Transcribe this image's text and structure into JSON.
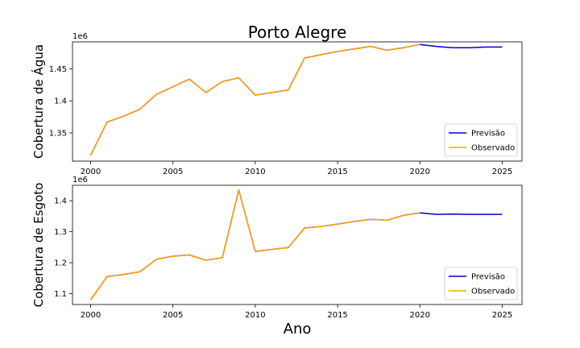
{
  "title": "Porto Alegre",
  "xlabel": "Ano",
  "colors": {
    "previsao": "#0000cc",
    "observado": "#ffa500"
  },
  "chart_data": [
    {
      "type": "line",
      "ylabel": "Cobertura de Água",
      "offset_text": "1e6",
      "xlim": [
        1998.9,
        2026.2
      ],
      "ylim": [
        1306000,
        1492000
      ],
      "xticks": [
        2000,
        2005,
        2010,
        2015,
        2020,
        2025
      ],
      "yticks": [
        1.35,
        1.4,
        1.45
      ],
      "ytick_scale": 1000000,
      "legend": {
        "position": "lower-right",
        "entries": [
          "Previsão",
          "Observado"
        ]
      },
      "series": [
        {
          "name": "Previsão",
          "color": "#0000cc",
          "x": [
            2000,
            2001,
            2002,
            2003,
            2004,
            2005,
            2006,
            2007,
            2008,
            2009,
            2010,
            2011,
            2012,
            2013,
            2014,
            2015,
            2016,
            2017,
            2018,
            2019,
            2020,
            2021,
            2022,
            2023,
            2024,
            2025
          ],
          "values": [
            1315000,
            1367000,
            1376000,
            1387000,
            1410000,
            1422000,
            1434000,
            1413000,
            1430000,
            1436000,
            1409000,
            1413000,
            1417000,
            1467000,
            1472000,
            1477000,
            1481000,
            1485000,
            1479000,
            1483000,
            1488000,
            1485000,
            1483000,
            1483000,
            1484000,
            1484000
          ]
        },
        {
          "name": "Observado",
          "color": "#ffa500",
          "x": [
            2000,
            2001,
            2002,
            2003,
            2004,
            2005,
            2006,
            2007,
            2008,
            2009,
            2010,
            2011,
            2012,
            2013,
            2014,
            2015,
            2016,
            2017,
            2018,
            2019,
            2020
          ],
          "values": [
            1315000,
            1367000,
            1376000,
            1387000,
            1410000,
            1422000,
            1434000,
            1413000,
            1430000,
            1436000,
            1409000,
            1413000,
            1417000,
            1467000,
            1472000,
            1477000,
            1481000,
            1485000,
            1479000,
            1483000,
            1488000
          ]
        }
      ]
    },
    {
      "type": "line",
      "ylabel": "Cobertura de Esgoto",
      "offset_text": "1e6",
      "xlim": [
        1998.9,
        2026.2
      ],
      "ylim": [
        1065000,
        1450000
      ],
      "xticks": [
        2000,
        2005,
        2010,
        2015,
        2020,
        2025
      ],
      "yticks": [
        1.1,
        1.2,
        1.3,
        1.4
      ],
      "ytick_scale": 1000000,
      "legend": {
        "position": "lower-right",
        "entries": [
          "Previsão",
          "Observado"
        ]
      },
      "series": [
        {
          "name": "Previsão",
          "color": "#0000cc",
          "x": [
            2000,
            2001,
            2002,
            2003,
            2004,
            2005,
            2006,
            2007,
            2008,
            2009,
            2010,
            2011,
            2012,
            2013,
            2014,
            2015,
            2016,
            2017,
            2018,
            2019,
            2020,
            2021,
            2022,
            2023,
            2024,
            2025
          ],
          "values": [
            1080000,
            1155000,
            1162000,
            1171000,
            1211000,
            1221000,
            1225000,
            1208000,
            1216000,
            1435000,
            1236000,
            1243000,
            1249000,
            1312000,
            1317000,
            1325000,
            1333000,
            1340000,
            1337000,
            1353000,
            1361000,
            1356000,
            1357000,
            1356000,
            1356000,
            1356000
          ]
        },
        {
          "name": "Observado",
          "color": "#ffa500",
          "x": [
            2000,
            2001,
            2002,
            2003,
            2004,
            2005,
            2006,
            2007,
            2008,
            2009,
            2010,
            2011,
            2012,
            2013,
            2014,
            2015,
            2016,
            2017,
            2018,
            2019,
            2020
          ],
          "values": [
            1080000,
            1155000,
            1162000,
            1171000,
            1211000,
            1221000,
            1225000,
            1208000,
            1216000,
            1435000,
            1236000,
            1243000,
            1249000,
            1312000,
            1317000,
            1325000,
            1333000,
            1340000,
            1337000,
            1353000,
            1361000
          ]
        }
      ]
    }
  ]
}
